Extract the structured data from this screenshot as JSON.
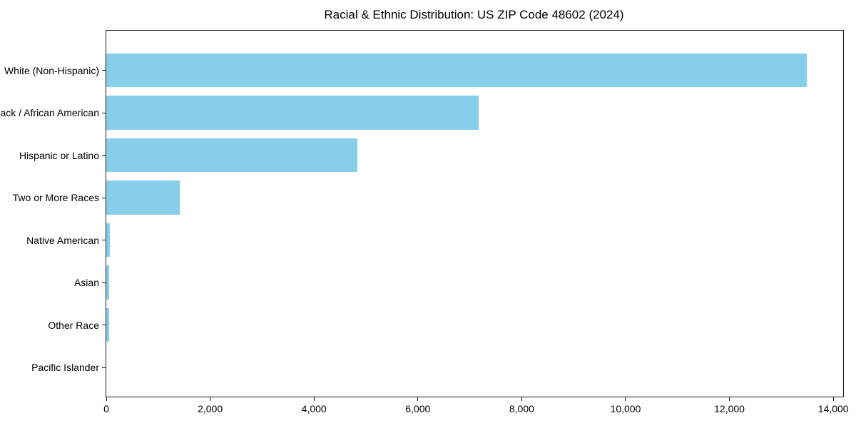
{
  "chart_data": {
    "type": "bar",
    "orientation": "horizontal",
    "title": "Racial & Ethnic Distribution: US ZIP Code 48602 (2024)",
    "categories": [
      "White (Non-Hispanic)",
      "Black / African American",
      "Hispanic or Latino",
      "Two or More Races",
      "Native American",
      "Asian",
      "Other Race",
      "Pacific Islander"
    ],
    "values": [
      13490,
      7170,
      4840,
      1420,
      70,
      55,
      60,
      0
    ],
    "xlabel": "",
    "ylabel": "",
    "xlim": [
      0,
      14190
    ],
    "xticks": [
      0,
      2000,
      4000,
      6000,
      8000,
      10000,
      12000,
      14000
    ],
    "xtick_labels": [
      "0",
      "2,000",
      "4,000",
      "6,000",
      "8,000",
      "10,000",
      "12,000",
      "14,000"
    ],
    "bar_color": "#87CEEB",
    "grid": false,
    "legend_position": "none"
  }
}
